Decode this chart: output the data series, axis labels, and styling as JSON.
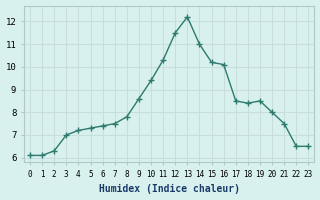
{
  "x": [
    0,
    1,
    2,
    3,
    4,
    5,
    6,
    7,
    8,
    9,
    10,
    11,
    12,
    13,
    14,
    15,
    16,
    17,
    18,
    19,
    20,
    21,
    22,
    23
  ],
  "y": [
    6.1,
    6.1,
    6.3,
    7.0,
    7.2,
    7.3,
    7.4,
    7.5,
    7.8,
    8.6,
    9.4,
    10.3,
    11.5,
    12.2,
    11.0,
    10.2,
    10.1,
    8.5,
    8.4,
    8.5,
    8.0,
    7.5,
    6.5,
    6.5
  ],
  "xlabel": "Humidex (Indice chaleur)",
  "line_color": "#2d7a6e",
  "marker": "+",
  "bg_color": "#d8f0ee",
  "grid_major_color": "#c8dedd",
  "grid_minor_color": "#daecea",
  "border_color": "#b0c8c6",
  "xtick_labels": [
    "0",
    "1",
    "2",
    "3",
    "4",
    "5",
    "6",
    "7",
    "8",
    "9",
    "10",
    "11",
    "12",
    "13",
    "14",
    "15",
    "16",
    "17",
    "18",
    "19",
    "20",
    "21",
    "22",
    "23"
  ],
  "ytick_values": [
    6,
    7,
    8,
    9,
    10,
    11,
    12
  ],
  "xlim": [
    -0.5,
    23.5
  ],
  "ylim": [
    5.8,
    12.7
  ]
}
